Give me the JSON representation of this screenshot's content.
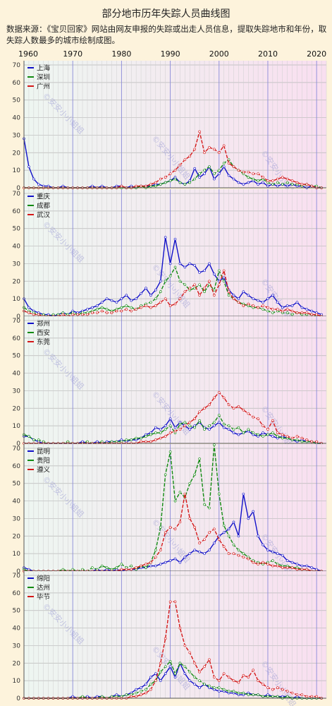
{
  "title": "部分地市历年失踪人员曲线图",
  "subtitle": "数据来源：《宝贝回家》网站由网友申报的失踪或出走人员信息，提取失踪地市和年份，取失踪人数最多的城市绘制成图。",
  "watermark": "©安安小小姐姐",
  "colors": {
    "series1": "#1010c8",
    "series2": "#118a11",
    "series3": "#d41818"
  },
  "chart_data": [
    {
      "type": "line",
      "x": [
        1960,
        1961,
        1962,
        1963,
        1964,
        1965,
        1966,
        1967,
        1968,
        1969,
        1970,
        1971,
        1972,
        1973,
        1974,
        1975,
        1976,
        1977,
        1978,
        1979,
        1980,
        1981,
        1982,
        1983,
        1984,
        1985,
        1986,
        1987,
        1988,
        1989,
        1990,
        1991,
        1992,
        1993,
        1994,
        1995,
        1996,
        1997,
        1998,
        1999,
        2000,
        2001,
        2002,
        2003,
        2004,
        2005,
        2006,
        2007,
        2008,
        2009,
        2010,
        2011,
        2012,
        2013,
        2014,
        2015,
        2016,
        2017,
        2018,
        2019,
        2020,
        2021
      ],
      "xlim": [
        1960,
        2022
      ],
      "ylim": [
        0,
        70
      ],
      "xticks": [
        1960,
        1970,
        1980,
        1990,
        2000,
        2010,
        2020
      ],
      "yticks": [
        0,
        10,
        20,
        30,
        40,
        50,
        60,
        70
      ],
      "series": [
        {
          "name": "上海",
          "values": [
            28,
            12,
            5,
            2,
            1,
            1,
            0,
            0,
            1,
            0,
            0,
            0,
            0,
            0,
            1,
            0,
            1,
            0,
            0,
            1,
            1,
            0,
            1,
            0,
            1,
            1,
            1,
            2,
            2,
            3,
            4,
            6,
            3,
            2,
            4,
            11,
            6,
            8,
            12,
            5,
            8,
            12,
            7,
            5,
            3,
            2,
            3,
            4,
            2,
            3,
            1,
            2,
            1,
            2,
            1,
            2,
            1,
            1,
            0,
            1,
            0,
            0
          ]
        },
        {
          "name": "深圳",
          "values": [
            0,
            0,
            0,
            0,
            0,
            0,
            0,
            0,
            0,
            0,
            0,
            0,
            0,
            0,
            0,
            0,
            0,
            0,
            0,
            0,
            0,
            0,
            0,
            0,
            1,
            0,
            1,
            1,
            2,
            3,
            4,
            5,
            3,
            2,
            3,
            5,
            8,
            10,
            12,
            8,
            10,
            14,
            16,
            12,
            10,
            8,
            6,
            5,
            4,
            5,
            3,
            2,
            3,
            2,
            3,
            2,
            2,
            1,
            2,
            1,
            1,
            0
          ]
        },
        {
          "name": "广州",
          "values": [
            0,
            0,
            0,
            0,
            0,
            0,
            0,
            0,
            0,
            0,
            0,
            0,
            0,
            0,
            0,
            0,
            0,
            0,
            0,
            0,
            1,
            0,
            0,
            1,
            1,
            1,
            2,
            3,
            5,
            6,
            8,
            10,
            13,
            16,
            18,
            22,
            32,
            20,
            23,
            22,
            20,
            24,
            14,
            12,
            10,
            9,
            9,
            8,
            8,
            6,
            4,
            4,
            5,
            6,
            5,
            4,
            3,
            2,
            2,
            1,
            0,
            0
          ]
        }
      ]
    },
    {
      "type": "line",
      "xlim": [
        1960,
        2022
      ],
      "ylim": [
        0,
        70
      ],
      "yticks": [
        0,
        10,
        20,
        30,
        40,
        50,
        60,
        70
      ],
      "series": [
        {
          "name": "重庆",
          "values": [
            10,
            5,
            3,
            2,
            1,
            1,
            0,
            1,
            2,
            1,
            3,
            2,
            3,
            4,
            5,
            6,
            8,
            10,
            9,
            8,
            10,
            12,
            9,
            10,
            13,
            16,
            12,
            15,
            20,
            45,
            30,
            44,
            30,
            28,
            30,
            29,
            25,
            26,
            30,
            24,
            20,
            22,
            15,
            12,
            10,
            14,
            12,
            10,
            9,
            8,
            10,
            12,
            8,
            5,
            6,
            6,
            8,
            5,
            4,
            3,
            2,
            1
          ]
        },
        {
          "name": "成都",
          "values": [
            5,
            3,
            2,
            1,
            1,
            0,
            1,
            1,
            2,
            1,
            2,
            1,
            2,
            2,
            3,
            4,
            5,
            4,
            3,
            4,
            5,
            6,
            5,
            4,
            6,
            7,
            8,
            10,
            14,
            20,
            23,
            28,
            20,
            18,
            15,
            16,
            18,
            14,
            18,
            15,
            26,
            20,
            12,
            10,
            8,
            7,
            6,
            5,
            5,
            4,
            3,
            2,
            3,
            2,
            2,
            1,
            2,
            1,
            1,
            1,
            0,
            0
          ]
        },
        {
          "name": "武汉",
          "values": [
            3,
            2,
            1,
            1,
            0,
            0,
            0,
            0,
            1,
            0,
            1,
            1,
            1,
            1,
            2,
            2,
            3,
            2,
            2,
            3,
            3,
            4,
            3,
            4,
            5,
            6,
            5,
            6,
            8,
            10,
            6,
            7,
            10,
            14,
            16,
            18,
            12,
            16,
            20,
            12,
            18,
            26,
            14,
            10,
            8,
            6,
            7,
            6,
            5,
            6,
            5,
            4,
            4,
            3,
            4,
            3,
            2,
            2,
            2,
            1,
            1,
            0
          ]
        }
      ]
    },
    {
      "type": "line",
      "xlim": [
        1960,
        2022
      ],
      "ylim": [
        0,
        70
      ],
      "yticks": [
        0,
        10,
        20,
        30,
        40,
        50,
        60,
        70
      ],
      "series": [
        {
          "name": "郑州",
          "values": [
            4,
            4,
            2,
            1,
            0,
            0,
            0,
            0,
            0,
            0,
            0,
            0,
            1,
            0,
            0,
            1,
            0,
            1,
            1,
            1,
            2,
            1,
            2,
            2,
            3,
            5,
            6,
            9,
            8,
            10,
            14,
            9,
            12,
            10,
            8,
            10,
            12,
            9,
            8,
            10,
            12,
            9,
            8,
            6,
            5,
            6,
            7,
            5,
            4,
            6,
            5,
            4,
            3,
            4,
            3,
            2,
            1,
            2,
            1,
            1,
            0,
            0
          ]
        },
        {
          "name": "西安",
          "values": [
            5,
            4,
            2,
            2,
            1,
            0,
            0,
            0,
            0,
            1,
            0,
            0,
            0,
            1,
            0,
            0,
            1,
            0,
            1,
            1,
            1,
            2,
            2,
            3,
            3,
            4,
            5,
            6,
            6,
            8,
            10,
            6,
            11,
            12,
            10,
            9,
            13,
            8,
            10,
            12,
            16,
            11,
            10,
            8,
            9,
            6,
            8,
            6,
            5,
            4,
            5,
            6,
            4,
            3,
            3,
            2,
            2,
            1,
            1,
            1,
            0,
            0
          ]
        },
        {
          "name": "东莞",
          "values": [
            0,
            0,
            0,
            0,
            0,
            0,
            0,
            0,
            0,
            0,
            0,
            0,
            0,
            0,
            0,
            0,
            0,
            0,
            0,
            0,
            0,
            0,
            0,
            0,
            1,
            1,
            1,
            2,
            3,
            4,
            6,
            7,
            8,
            10,
            12,
            14,
            18,
            20,
            22,
            26,
            29,
            26,
            22,
            20,
            21,
            19,
            17,
            15,
            14,
            10,
            8,
            13,
            6,
            5,
            4,
            3,
            4,
            3,
            2,
            1,
            1,
            0
          ]
        }
      ]
    },
    {
      "type": "line",
      "xlim": [
        1960,
        2022
      ],
      "ylim": [
        0,
        70
      ],
      "yticks": [
        0,
        10,
        20,
        30,
        40,
        50,
        60,
        70
      ],
      "series": [
        {
          "name": "昆明",
          "values": [
            2,
            1,
            0,
            0,
            0,
            0,
            0,
            0,
            0,
            0,
            0,
            0,
            0,
            0,
            0,
            1,
            0,
            1,
            0,
            1,
            0,
            1,
            1,
            1,
            2,
            2,
            3,
            3,
            4,
            5,
            6,
            7,
            5,
            8,
            10,
            12,
            11,
            10,
            12,
            16,
            20,
            22,
            24,
            28,
            20,
            44,
            30,
            34,
            20,
            15,
            12,
            11,
            10,
            9,
            6,
            5,
            4,
            3,
            3,
            2,
            1,
            0
          ]
        },
        {
          "name": "贵阳",
          "values": [
            1,
            0,
            0,
            0,
            0,
            0,
            0,
            0,
            1,
            0,
            1,
            0,
            1,
            0,
            2,
            1,
            3,
            2,
            1,
            2,
            4,
            2,
            3,
            1,
            3,
            2,
            5,
            12,
            25,
            55,
            68,
            40,
            45,
            42,
            50,
            55,
            64,
            38,
            36,
            72,
            44,
            26,
            20,
            15,
            12,
            10,
            8,
            6,
            5,
            4,
            5,
            6,
            4,
            3,
            3,
            2,
            2,
            1,
            1,
            0,
            0,
            0
          ]
        },
        {
          "name": "遵义",
          "values": [
            0,
            0,
            0,
            0,
            0,
            0,
            0,
            0,
            0,
            0,
            0,
            0,
            0,
            0,
            0,
            0,
            0,
            0,
            0,
            0,
            1,
            1,
            1,
            2,
            3,
            4,
            5,
            8,
            12,
            22,
            25,
            24,
            28,
            44,
            30,
            25,
            16,
            18,
            22,
            24,
            18,
            14,
            10,
            10,
            9,
            8,
            7,
            5,
            4,
            5,
            4,
            3,
            3,
            2,
            2,
            2,
            1,
            1,
            1,
            0,
            0,
            0
          ]
        }
      ]
    },
    {
      "type": "line",
      "xlim": [
        1960,
        2022
      ],
      "ylim": [
        0,
        70
      ],
      "yticks": [
        0,
        10,
        20,
        30,
        40,
        50,
        60,
        70
      ],
      "series": [
        {
          "name": "绵阳",
          "values": [
            0,
            0,
            0,
            0,
            0,
            0,
            0,
            0,
            0,
            0,
            1,
            0,
            0,
            1,
            0,
            1,
            1,
            0,
            1,
            2,
            1,
            2,
            3,
            5,
            6,
            8,
            12,
            14,
            10,
            14,
            18,
            12,
            20,
            14,
            10,
            8,
            6,
            8,
            6,
            5,
            4,
            4,
            3,
            3,
            2,
            2,
            3,
            2,
            2,
            1,
            2,
            1,
            1,
            1,
            1,
            0,
            1,
            0,
            0,
            0,
            0,
            0
          ]
        },
        {
          "name": "达州",
          "values": [
            0,
            0,
            0,
            0,
            0,
            0,
            0,
            0,
            0,
            0,
            0,
            0,
            1,
            0,
            0,
            0,
            1,
            0,
            1,
            1,
            1,
            2,
            2,
            3,
            4,
            5,
            8,
            10,
            15,
            18,
            21,
            14,
            20,
            18,
            15,
            12,
            10,
            8,
            7,
            6,
            6,
            5,
            4,
            4,
            3,
            3,
            2,
            2,
            2,
            1,
            1,
            1,
            1,
            0,
            1,
            0,
            0,
            0,
            0,
            0,
            0,
            0
          ]
        },
        {
          "name": "毕节",
          "values": [
            0,
            0,
            0,
            0,
            0,
            0,
            0,
            0,
            0,
            0,
            0,
            0,
            0,
            0,
            0,
            0,
            0,
            0,
            0,
            0,
            0,
            0,
            1,
            1,
            2,
            3,
            5,
            10,
            20,
            34,
            55,
            55,
            40,
            30,
            26,
            20,
            15,
            18,
            22,
            12,
            10,
            14,
            12,
            10,
            9,
            13,
            12,
            16,
            10,
            8,
            6,
            5,
            6,
            5,
            4,
            3,
            2,
            2,
            1,
            1,
            1,
            0
          ]
        }
      ]
    }
  ]
}
